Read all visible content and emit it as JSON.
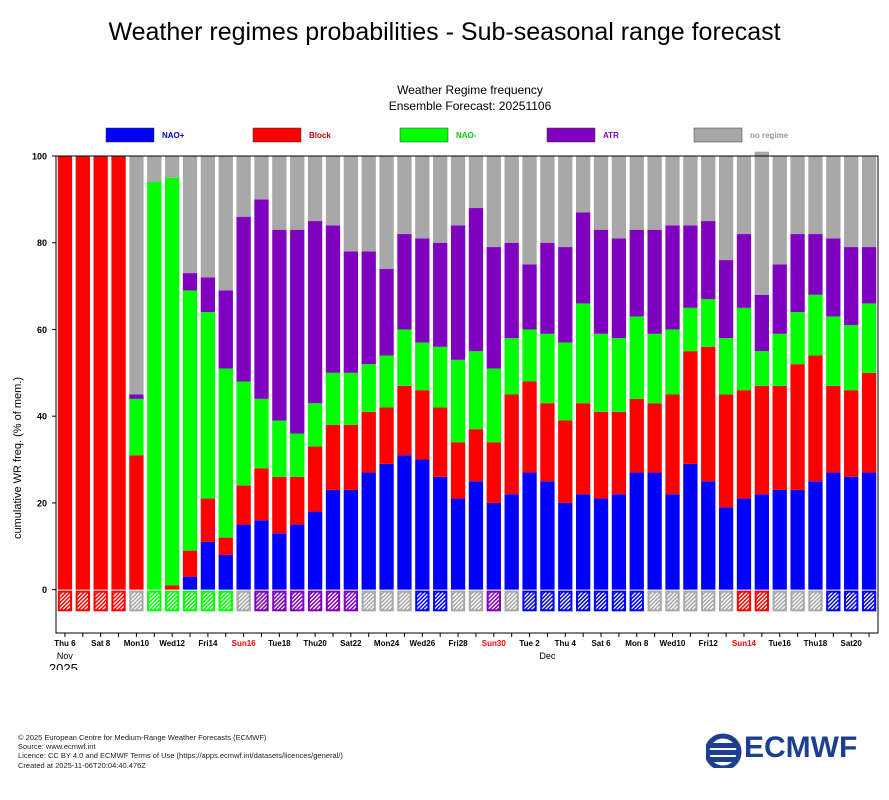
{
  "page_title": "Weather regimes probabilities - Sub-seasonal range forecast",
  "chart_data": {
    "type": "bar",
    "stacked": true,
    "title": "Weather Regime frequency",
    "subtitle": "Ensemble Forecast: 20251106",
    "ylabel": "cumulative WR freq. (% of mem.)",
    "ylim": [
      -10,
      100
    ],
    "yticks": [
      0,
      20,
      40,
      60,
      80,
      100
    ],
    "year_label": "2025",
    "month_labels": [
      {
        "index": 0,
        "text": "Nov"
      },
      {
        "index": 27,
        "text": "Dec"
      }
    ],
    "xtick_labels": [
      {
        "index": 0,
        "text": "Thu 6",
        "red": false
      },
      {
        "index": 2,
        "text": "Sat 8",
        "red": false
      },
      {
        "index": 4,
        "text": "Mon10",
        "red": false
      },
      {
        "index": 6,
        "text": "Wed12",
        "red": false
      },
      {
        "index": 8,
        "text": "Fri14",
        "red": false
      },
      {
        "index": 10,
        "text": "Sun16",
        "red": true
      },
      {
        "index": 12,
        "text": "Tue18",
        "red": false
      },
      {
        "index": 14,
        "text": "Thu20",
        "red": false
      },
      {
        "index": 16,
        "text": "Sat22",
        "red": false
      },
      {
        "index": 18,
        "text": "Mon24",
        "red": false
      },
      {
        "index": 20,
        "text": "Wed26",
        "red": false
      },
      {
        "index": 22,
        "text": "Fri28",
        "red": false
      },
      {
        "index": 24,
        "text": "Sun30",
        "red": true
      },
      {
        "index": 26,
        "text": "Tue 2",
        "red": false
      },
      {
        "index": 28,
        "text": "Thu 4",
        "red": false
      },
      {
        "index": 30,
        "text": "Sat 6",
        "red": false
      },
      {
        "index": 32,
        "text": "Mon 8",
        "red": false
      },
      {
        "index": 34,
        "text": "Wed10",
        "red": false
      },
      {
        "index": 36,
        "text": "Fri12",
        "red": false
      },
      {
        "index": 38,
        "text": "Sun14",
        "red": true
      },
      {
        "index": 40,
        "text": "Tue16",
        "red": false
      },
      {
        "index": 42,
        "text": "Thu18",
        "red": false
      },
      {
        "index": 44,
        "text": "Sat20",
        "red": false
      }
    ],
    "legend_position": "top",
    "series": [
      {
        "name": "NAO+",
        "color": "#0000ff",
        "label_color": "#0000cc",
        "values": [
          0,
          0,
          0,
          0,
          0,
          0,
          0,
          3,
          11,
          8,
          15,
          16,
          13,
          15,
          18,
          23,
          23,
          27,
          29,
          31,
          30,
          26,
          21,
          25,
          20,
          22,
          27,
          25,
          20,
          22,
          21,
          22,
          27,
          27,
          22,
          29,
          25,
          19,
          21,
          22,
          23,
          23,
          25,
          27,
          26,
          27
        ]
      },
      {
        "name": "Block",
        "color": "#ff0000",
        "label_color": "#cc0000",
        "values": [
          100,
          100,
          100,
          100,
          31,
          0,
          1,
          6,
          10,
          4,
          9,
          12,
          13,
          11,
          15,
          15,
          15,
          14,
          13,
          16,
          16,
          16,
          13,
          12,
          14,
          23,
          21,
          18,
          19,
          21,
          20,
          19,
          17,
          16,
          23,
          26,
          31,
          26,
          25,
          25,
          24,
          29,
          29,
          20,
          20,
          23
        ]
      },
      {
        "name": "NAO-",
        "color": "#00ff00",
        "label_color": "#00cc00",
        "values": [
          0,
          0,
          0,
          0,
          13,
          94,
          94,
          60,
          43,
          39,
          24,
          16,
          13,
          10,
          10,
          12,
          12,
          11,
          12,
          13,
          11,
          14,
          19,
          18,
          17,
          13,
          12,
          16,
          18,
          23,
          18,
          17,
          19,
          16,
          15,
          10,
          11,
          13,
          19,
          8,
          12,
          12,
          14,
          16,
          15,
          16
        ]
      },
      {
        "name": "ATR",
        "color": "#8000c0",
        "label_color": "#8000c0",
        "values": [
          0,
          0,
          0,
          0,
          1,
          0,
          0,
          4,
          8,
          18,
          38,
          46,
          44,
          47,
          42,
          34,
          28,
          26,
          20,
          22,
          24,
          24,
          31,
          33,
          28,
          22,
          15,
          21,
          22,
          21,
          24,
          23,
          20,
          24,
          24,
          19,
          18,
          18,
          17,
          13,
          16,
          18,
          14,
          18,
          18,
          13
        ]
      },
      {
        "name": "no regime",
        "color": "#a8a8a8",
        "label_color": "#999999",
        "values": [
          0,
          0,
          0,
          0,
          55,
          6,
          5,
          27,
          28,
          31,
          14,
          10,
          17,
          17,
          15,
          16,
          22,
          22,
          26,
          18,
          19,
          20,
          16,
          12,
          21,
          20,
          25,
          20,
          21,
          13,
          17,
          19,
          17,
          17,
          16,
          16,
          15,
          24,
          18,
          33,
          25,
          18,
          18,
          19,
          21,
          21
        ]
      }
    ],
    "dominant_regime": [
      "Block",
      "Block",
      "Block",
      "Block",
      "no regime",
      "NAO-",
      "NAO-",
      "NAO-",
      "NAO-",
      "NAO-",
      "no regime",
      "ATR",
      "ATR",
      "ATR",
      "ATR",
      "ATR",
      "ATR",
      "no regime",
      "no regime",
      "no regime",
      "NAO+",
      "NAO+",
      "no regime",
      "no regime",
      "ATR",
      "no regime",
      "NAO+",
      "NAO+",
      "NAO+",
      "NAO+",
      "NAO+",
      "NAO+",
      "NAO+",
      "no regime",
      "no regime",
      "no regime",
      "no regime",
      "no regime",
      "Block",
      "Block",
      "no regime",
      "no regime",
      "no regime",
      "NAO+",
      "NAO+",
      "NAO+"
    ]
  },
  "footer": {
    "line1": "© 2025 European Centre for Medium-Range Weather Forecasts (ECMWF)",
    "line2": "Source: www.ecmwf.int",
    "line3": "Licence: CC BY 4.0 and ECMWF Terms of Use (https://apps.ecmwf.int/datasets/licences/general/)",
    "line4": "Created at 2025-11-06T20:04:40.476Z"
  },
  "logo": {
    "text": "ECMWF",
    "color": "#1d3f8f"
  }
}
